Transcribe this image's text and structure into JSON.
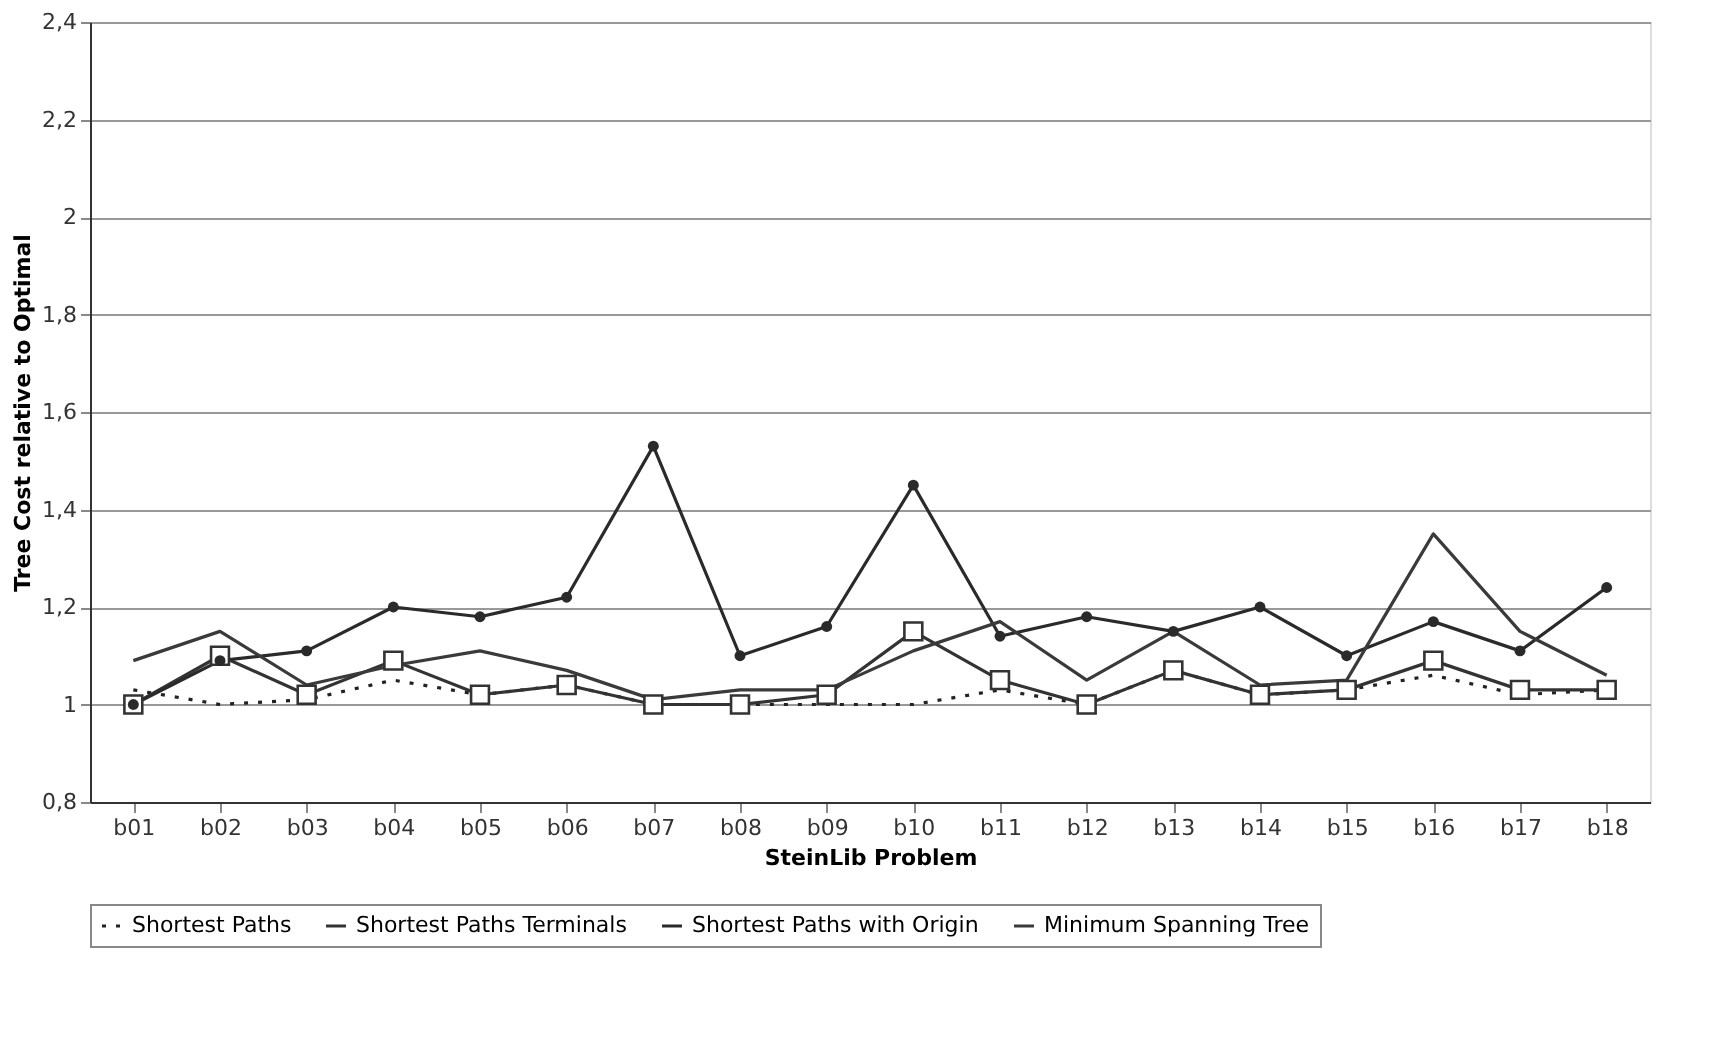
{
  "chart_data": {
    "type": "line",
    "xlabel": "SteinLib Problem",
    "ylabel": "Tree Cost relative to Optimal",
    "categories": [
      "b01",
      "b02",
      "b03",
      "b04",
      "b05",
      "b06",
      "b07",
      "b08",
      "b09",
      "b10",
      "b11",
      "b12",
      "b13",
      "b14",
      "b15",
      "b16",
      "b17",
      "b18"
    ],
    "ylim": [
      0.8,
      2.4
    ],
    "yticks": [
      {
        "value": 0.8,
        "label": "0,8"
      },
      1,
      {
        "value": 1.2,
        "label": "1,2"
      },
      {
        "value": 1.4,
        "label": "1,4"
      },
      {
        "value": 1.6,
        "label": "1,6"
      },
      {
        "value": 1.8,
        "label": "1,8"
      },
      2,
      {
        "value": 2.2,
        "label": "2,2"
      },
      {
        "value": 2.4,
        "label": "2,4"
      }
    ],
    "grid": "y",
    "legend": "bottom",
    "series": [
      {
        "name": "Shortest Paths",
        "color": "#222222",
        "line_style": "dotted",
        "marker": "none",
        "values": [
          1.03,
          1.0,
          1.01,
          1.05,
          1.02,
          1.04,
          1.0,
          1.0,
          1.0,
          1.0,
          1.03,
          1.0,
          1.07,
          1.02,
          1.03,
          1.06,
          1.02,
          1.03
        ]
      },
      {
        "name": "Shortest Paths Terminals",
        "color": "#333333",
        "line_style": "solid",
        "marker": "square",
        "values": [
          1.0,
          1.1,
          1.02,
          1.09,
          1.02,
          1.04,
          1.0,
          1.0,
          1.02,
          1.15,
          1.05,
          1.0,
          1.07,
          1.02,
          1.03,
          1.09,
          1.03,
          1.03
        ]
      },
      {
        "name": "Shortest Paths with Origin",
        "color": "#2a2a2a",
        "line_style": "solid",
        "marker": "circle",
        "values": [
          1.0,
          1.09,
          1.11,
          1.2,
          1.18,
          1.22,
          1.53,
          1.1,
          1.16,
          1.45,
          1.14,
          1.18,
          1.15,
          1.2,
          1.1,
          1.17,
          1.11,
          1.24
        ]
      },
      {
        "name": "Minimum Spanning Tree",
        "color": "#3a3a3a",
        "line_style": "solid",
        "marker": "none",
        "values": [
          1.09,
          1.15,
          1.04,
          1.08,
          1.11,
          1.07,
          1.01,
          1.03,
          1.03,
          1.11,
          1.17,
          1.05,
          1.15,
          1.04,
          1.05,
          1.35,
          1.15,
          1.06
        ]
      }
    ]
  }
}
